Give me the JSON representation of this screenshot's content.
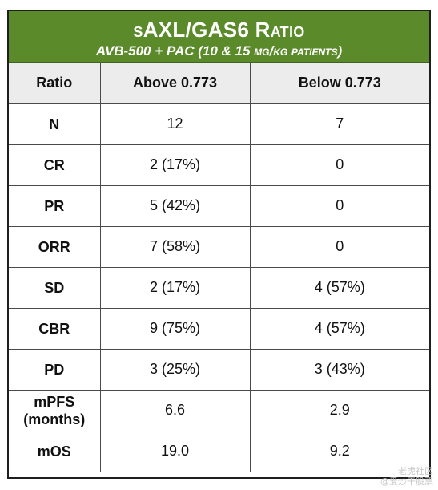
{
  "header": {
    "title": "sAXL/GAS6 Ratio",
    "subtitle": "AVB-500 + PAC (10 & 15 mg/kg patients)",
    "background_color": "#5a8a2a"
  },
  "table": {
    "columns": [
      "Ratio",
      "Above 0.773",
      "Below 0.773"
    ],
    "rows": [
      {
        "label": "N",
        "above": "12",
        "below": "7"
      },
      {
        "label": "CR",
        "above": "2 (17%)",
        "below": "0"
      },
      {
        "label": "PR",
        "above": "5 (42%)",
        "below": "0"
      },
      {
        "label": "ORR",
        "above": "7 (58%)",
        "below": "0"
      },
      {
        "label": "SD",
        "above": "2 (17%)",
        "below": "4 (57%)"
      },
      {
        "label": "CBR",
        "above": "9 (75%)",
        "below": "4 (57%)"
      },
      {
        "label": "PD",
        "above": "3 (25%)",
        "below": "3 (43%)"
      },
      {
        "label": "mPFS\n(months)",
        "above": "6.6",
        "below": "2.9"
      },
      {
        "label": "mOS",
        "above": "19.0",
        "below": "9.2"
      }
    ]
  },
  "watermark": {
    "line1": "老虎社区",
    "line2": "@爱炒干股票"
  }
}
